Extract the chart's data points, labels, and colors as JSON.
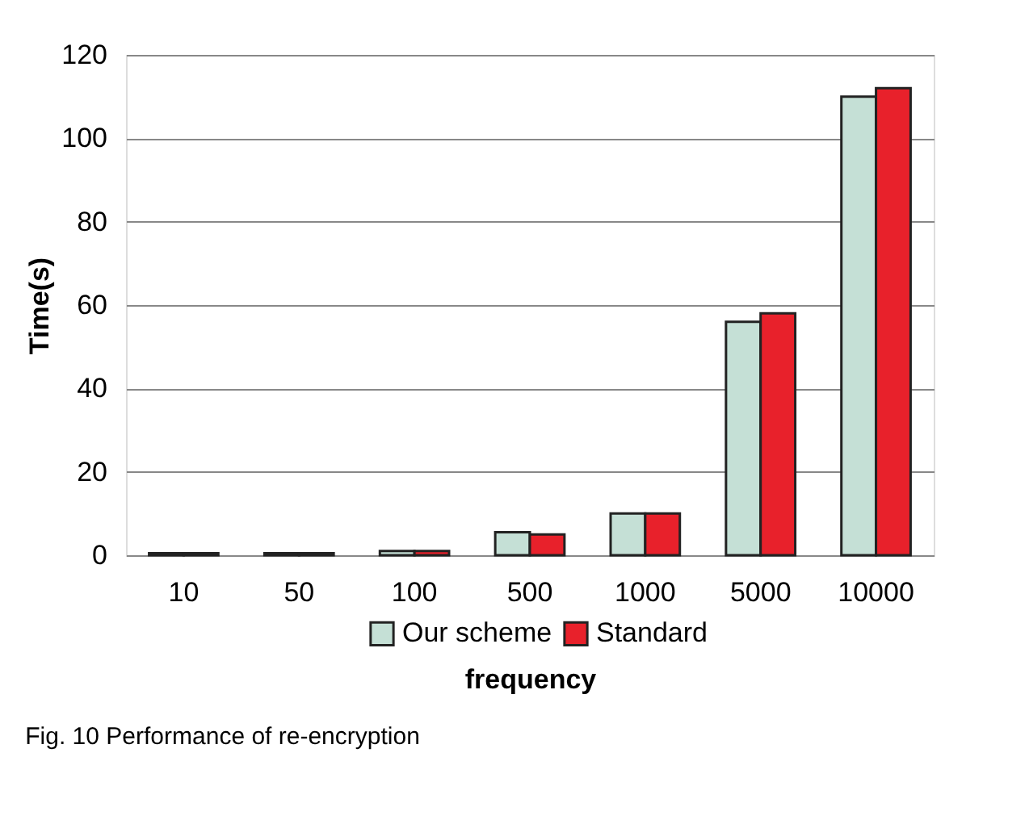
{
  "chart_data": {
    "type": "bar",
    "xlabel": "frequency",
    "ylabel": "Time(s)",
    "categories": [
      "10",
      "50",
      "100",
      "500",
      "1000",
      "5000",
      "10000"
    ],
    "series": [
      {
        "name": "Our scheme",
        "color": "#c5e0d6",
        "values": [
          0.5,
          0.5,
          1,
          5.5,
          10,
          56,
          110
        ]
      },
      {
        "name": "Standard",
        "color": "#e8212b",
        "values": [
          0.5,
          0.5,
          1,
          5,
          10,
          58,
          112
        ]
      }
    ],
    "ylim": [
      0,
      120
    ],
    "yticks": [
      0,
      20,
      40,
      60,
      80,
      100,
      120
    ],
    "grid": "y",
    "legend": "bottom",
    "annotations": [
      "Fig. 10 Performance of re-encryption"
    ]
  }
}
